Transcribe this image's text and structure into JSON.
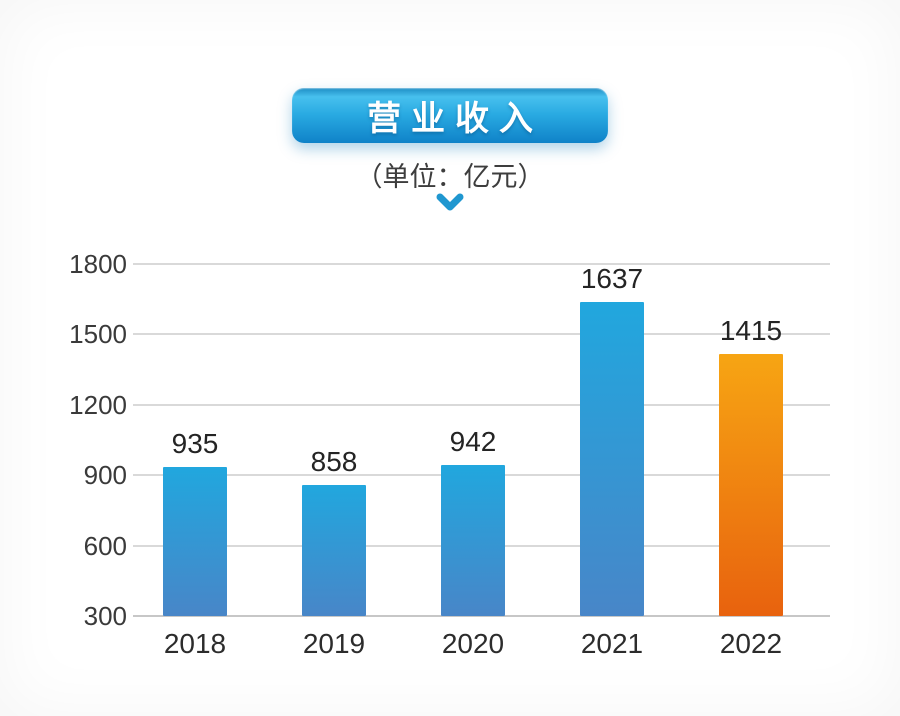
{
  "header": {
    "title": "营业收入",
    "subtitle": "（单位：亿元）"
  },
  "colors": {
    "badge_top": "#47c0ee",
    "badge_bottom": "#0f82c8",
    "chevron": "#1f97d0",
    "grid": "#d9d9d9",
    "text_dark": "#2c2c2c",
    "bar_blue_top": "#21a7de",
    "bar_blue_bottom": "#4886c8",
    "bar_orange_top": "#f7a513",
    "bar_orange_bottom": "#e8620e"
  },
  "chart_data": {
    "type": "bar",
    "title": "营业收入",
    "unit_label": "（单位：亿元）",
    "categories": [
      "2018",
      "2019",
      "2020",
      "2021",
      "2022"
    ],
    "values": [
      935,
      858,
      942,
      1637,
      1415
    ],
    "bar_gradients": [
      {
        "top": "#21a7de",
        "bottom": "#4886c8"
      },
      {
        "top": "#21a7de",
        "bottom": "#4886c8"
      },
      {
        "top": "#21a7de",
        "bottom": "#4886c8"
      },
      {
        "top": "#21a7de",
        "bottom": "#4886c8"
      },
      {
        "top": "#f7a513",
        "bottom": "#e8620e"
      }
    ],
    "ylim": [
      300,
      1800
    ],
    "yticks": [
      300,
      600,
      900,
      1200,
      1500,
      1800
    ],
    "xlabel": "",
    "ylabel": "",
    "grid": true,
    "legend": false,
    "value_labels": true
  }
}
